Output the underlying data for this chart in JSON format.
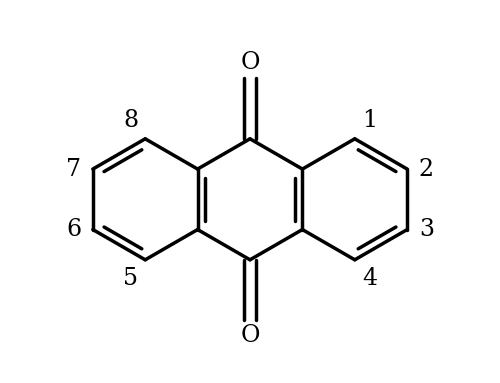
{
  "background_color": "#ffffff",
  "line_color": "#000000",
  "line_width": 2.5,
  "font_size": 17,
  "figsize": [
    5.0,
    3.83
  ],
  "dpi": 100,
  "mx": 0.5,
  "my": 0.48,
  "ux": 0.155,
  "uy": 0.155
}
